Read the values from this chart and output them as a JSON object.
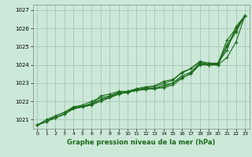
{
  "title": "Graphe pression niveau de la mer (hPa)",
  "ylabel_ticks": [
    1021,
    1022,
    1023,
    1024,
    1025,
    1026,
    1027
  ],
  "xticks": [
    0,
    1,
    2,
    3,
    4,
    5,
    6,
    7,
    8,
    9,
    10,
    11,
    12,
    13,
    14,
    15,
    16,
    17,
    18,
    19,
    20,
    21,
    22,
    23
  ],
  "xlim": [
    -0.5,
    23.5
  ],
  "ylim": [
    1020.5,
    1027.3
  ],
  "bg_color": "#cce8d8",
  "grid_color": "#aaccbb",
  "line_color": "#1a6b1a",
  "series": [
    [
      1020.7,
      1020.9,
      1021.1,
      1021.3,
      1021.6,
      1021.7,
      1021.8,
      1022.0,
      1022.2,
      1022.4,
      1022.5,
      1022.6,
      1022.7,
      1022.7,
      1022.8,
      1023.0,
      1023.3,
      1023.5,
      1024.0,
      1024.0,
      1024.1,
      1024.8,
      1026.1,
      1026.7
    ],
    [
      1020.7,
      1020.9,
      1021.1,
      1021.3,
      1021.6,
      1021.7,
      1021.9,
      1022.1,
      1022.2,
      1022.4,
      1022.5,
      1022.6,
      1022.7,
      1022.7,
      1022.9,
      1023.0,
      1023.4,
      1023.6,
      1024.1,
      1024.0,
      1024.0,
      1025.0,
      1025.8,
      1026.7
    ],
    [
      1020.7,
      1020.9,
      1021.2,
      1021.4,
      1021.7,
      1021.8,
      1022.0,
      1022.2,
      1022.3,
      1022.5,
      1022.55,
      1022.7,
      1022.8,
      1022.85,
      1023.1,
      1023.2,
      1023.55,
      1023.8,
      1024.15,
      1024.05,
      1024.05,
      1025.35,
      1026.0,
      1026.7
    ],
    [
      1020.7,
      1020.9,
      1021.1,
      1021.3,
      1021.6,
      1021.7,
      1021.8,
      1022.1,
      1022.25,
      1022.45,
      1022.5,
      1022.6,
      1022.65,
      1022.7,
      1022.75,
      1022.9,
      1023.25,
      1023.55,
      1024.05,
      1024.0,
      1024.0,
      1024.4,
      1025.25,
      1026.7
    ],
    [
      1020.7,
      1021.0,
      1021.2,
      1021.4,
      1021.65,
      1021.75,
      1021.85,
      1022.3,
      1022.4,
      1022.55,
      1022.55,
      1022.65,
      1022.75,
      1022.8,
      1023.0,
      1023.15,
      1023.6,
      1023.8,
      1024.2,
      1024.1,
      1024.1,
      1025.1,
      1025.9,
      1026.7
    ]
  ]
}
